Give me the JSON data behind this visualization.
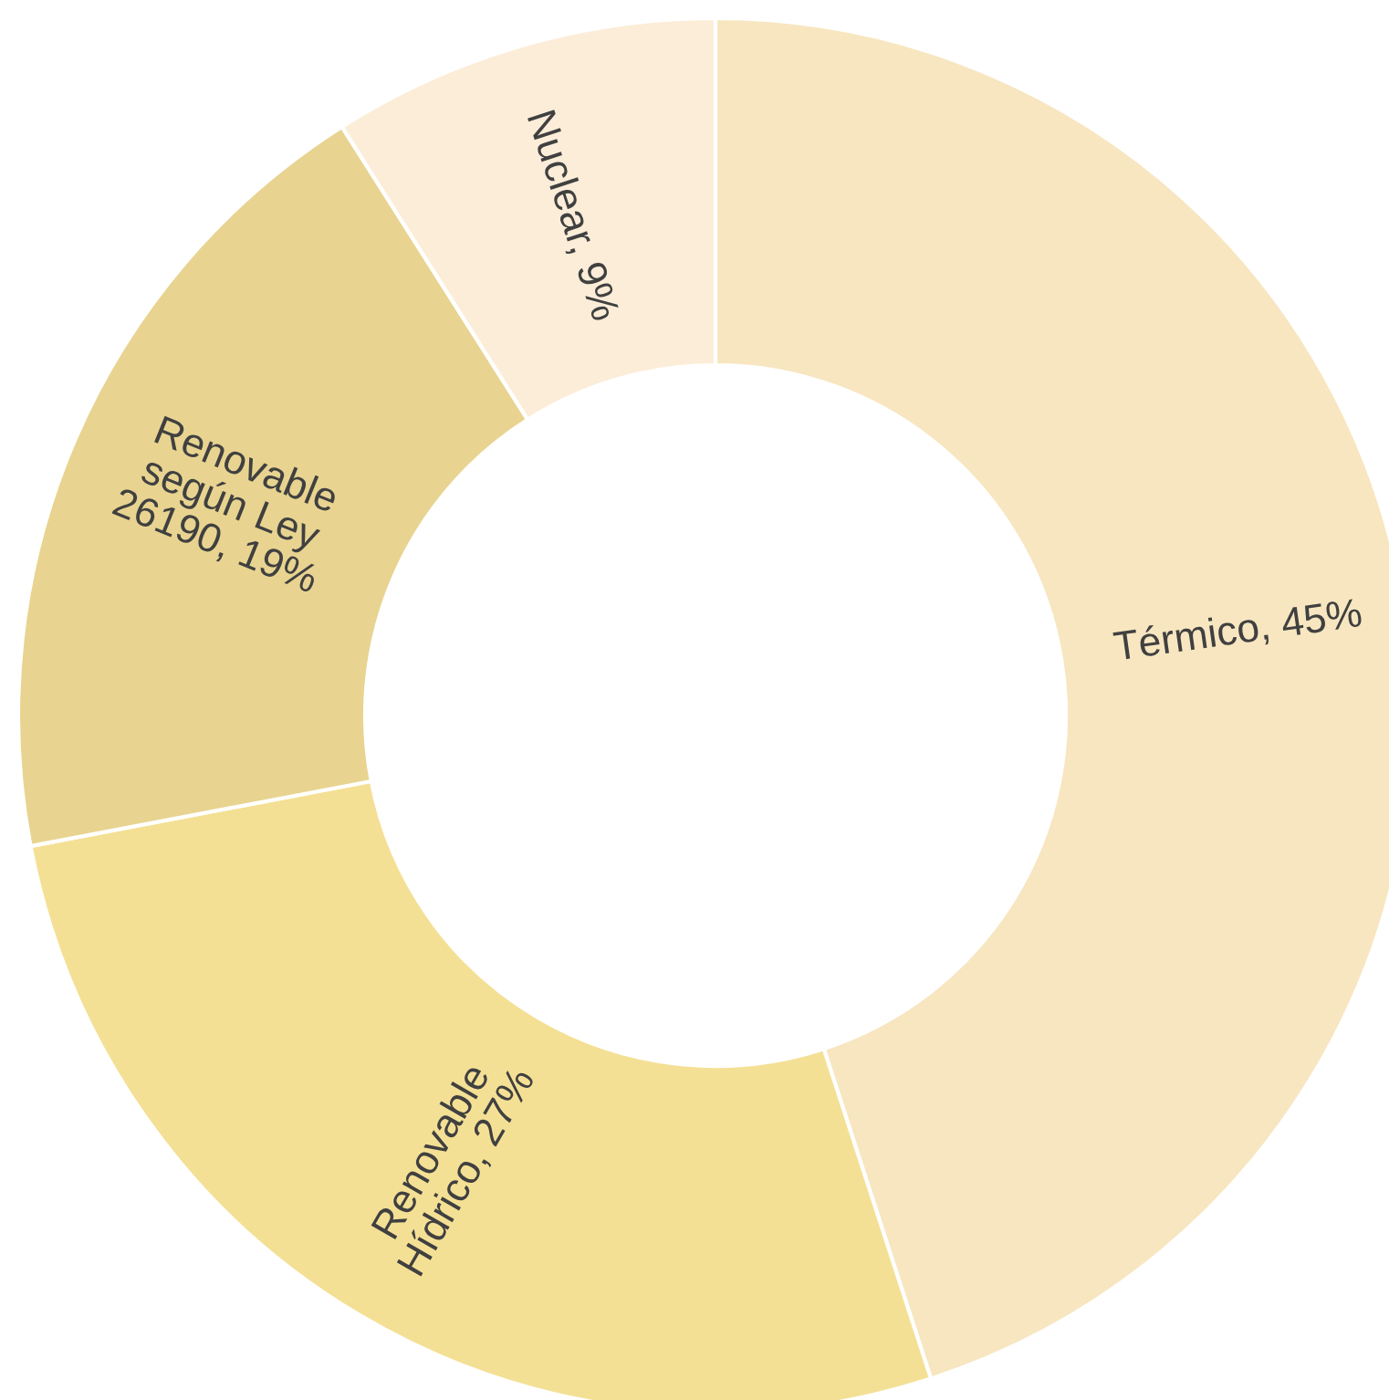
{
  "chart_data": {
    "type": "donut",
    "categories": [
      "Térmico",
      "Renovable Hídrico",
      "Renovable según Ley 26190",
      "Nuclear"
    ],
    "values": [
      45,
      27,
      19,
      9
    ],
    "value_labels": [
      "45%",
      "27%",
      "19%",
      "9%"
    ],
    "colors": [
      "#f7e6c0",
      "#f4e095",
      "#e8d490",
      "#fcedd8"
    ],
    "legend": false
  }
}
